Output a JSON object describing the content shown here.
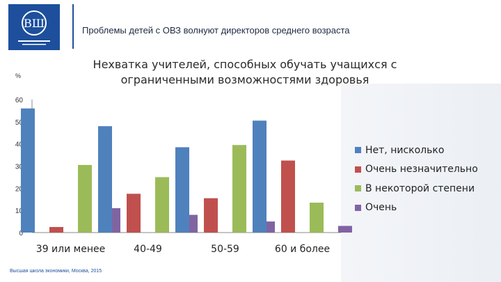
{
  "header": {
    "title": "Проблемы детей с ОВЗ волнуют директоров среднего возраста",
    "footer": "Высшая школа экономики, Москва, 2015"
  },
  "colors": {
    "brand": "#1d4f9c"
  },
  "chart_data": {
    "type": "bar",
    "title": "Нехватка учителей, способных обучать учащихся с ограниченными возможностями здоровья",
    "ylabel": "%",
    "xlabel": "",
    "ylim": [
      0,
      60
    ],
    "yticks": [
      "0",
      "10",
      "20",
      "30",
      "40",
      "50",
      "60"
    ],
    "grid": false,
    "legend_position": "right",
    "categories": [
      "39 или менее",
      "40-49",
      "50-59",
      "60 и более"
    ],
    "series": [
      {
        "name": "Нет, нисколько",
        "color": "#4f81bd",
        "values": [
          56,
          48,
          38.5,
          50.5
        ]
      },
      {
        "name": "Очень незначительно",
        "color": "#c0504d",
        "values": [
          2.5,
          17.5,
          15.5,
          32.5
        ]
      },
      {
        "name": "В некоторой степени",
        "color": "#9bbb59",
        "values": [
          30.5,
          25,
          39.5,
          13.5
        ]
      },
      {
        "name": "Очень",
        "color": "#8064a2",
        "values": [
          11,
          8,
          5,
          3
        ]
      }
    ]
  }
}
